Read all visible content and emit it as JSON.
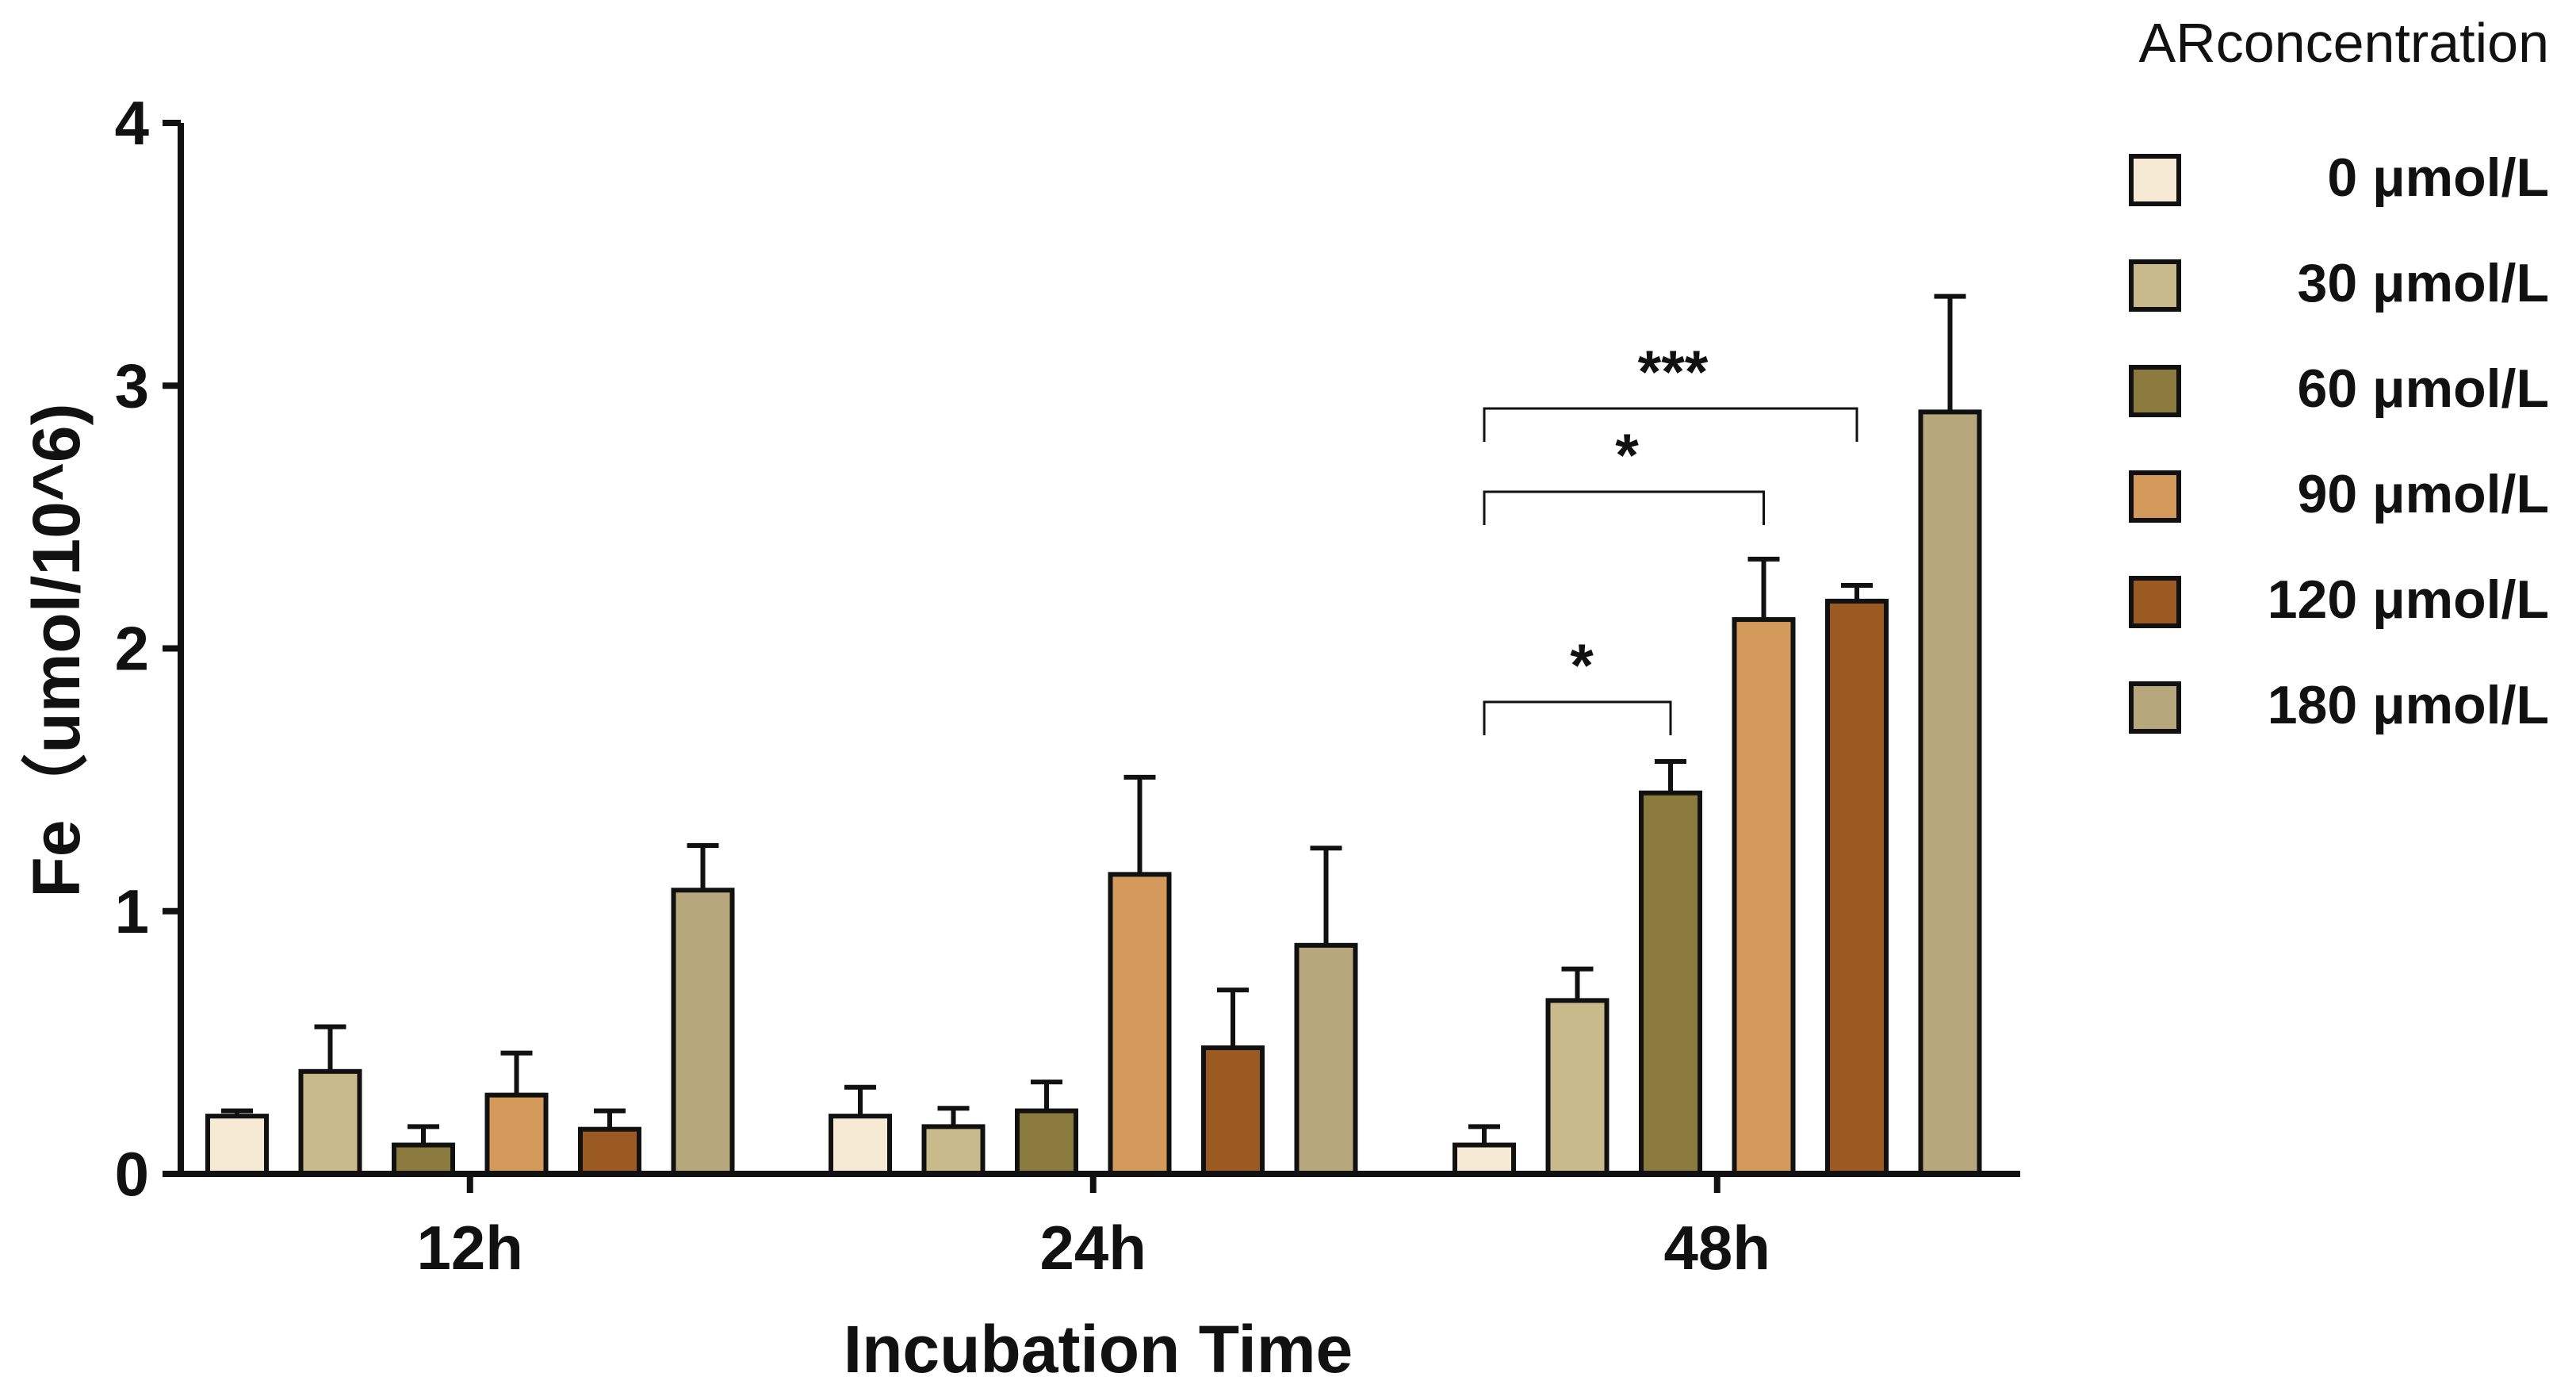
{
  "chart_data": {
    "type": "bar",
    "title": "",
    "xlabel": "Incubation Time",
    "ylabel": "Fe（umol/10^6)",
    "ylim": [
      0,
      4
    ],
    "yticks": [
      "0",
      "1",
      "2",
      "3",
      "4"
    ],
    "categories": [
      "12h",
      "24h",
      "48h"
    ],
    "legend_title": "ARconcentration",
    "series": [
      {
        "name": "0 μmol/L",
        "color": "#f6ead5",
        "values": [
          0.22,
          0.22,
          0.11
        ],
        "errors": [
          0.02,
          0.11,
          0.07
        ]
      },
      {
        "name": "30 μmol/L",
        "color": "#c9ba8b",
        "values": [
          0.39,
          0.18,
          0.66
        ],
        "errors": [
          0.17,
          0.07,
          0.12
        ]
      },
      {
        "name": "60 μmol/L",
        "color": "#8a7a3e",
        "values": [
          0.11,
          0.24,
          1.45
        ],
        "errors": [
          0.07,
          0.11,
          0.12
        ]
      },
      {
        "name": "90 μmol/L",
        "color": "#d49a5c",
        "values": [
          0.3,
          1.14,
          2.11
        ],
        "errors": [
          0.16,
          0.37,
          0.23
        ]
      },
      {
        "name": "120 μmol/L",
        "color": "#9a5a22",
        "values": [
          0.17,
          0.48,
          2.18
        ],
        "errors": [
          0.07,
          0.22,
          0.06
        ]
      },
      {
        "name": "180 μmol/L",
        "color": "#b7a77c",
        "values": [
          1.08,
          0.87,
          2.9
        ],
        "errors": [
          0.17,
          0.37,
          0.44
        ]
      }
    ],
    "significance": [
      {
        "category": "48h",
        "from_series": 0,
        "to_series": 2,
        "label": "*"
      },
      {
        "category": "48h",
        "from_series": 0,
        "to_series": 3,
        "label": "*"
      },
      {
        "category": "48h",
        "from_series": 0,
        "to_series": 4,
        "label": "***"
      }
    ],
    "legend_position": "right"
  }
}
